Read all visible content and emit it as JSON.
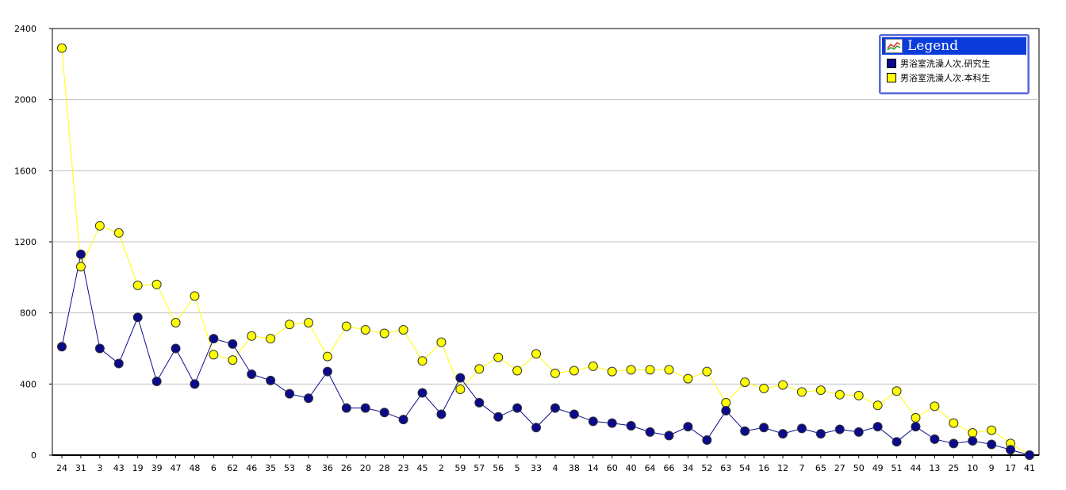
{
  "chart_data": {
    "type": "line",
    "categories": [
      "24",
      "31",
      "3",
      "43",
      "19",
      "39",
      "47",
      "48",
      "6",
      "62",
      "46",
      "35",
      "53",
      "8",
      "36",
      "26",
      "20",
      "28",
      "23",
      "45",
      "2",
      "59",
      "57",
      "56",
      "5",
      "33",
      "4",
      "38",
      "14",
      "60",
      "40",
      "64",
      "66",
      "34",
      "52",
      "63",
      "54",
      "16",
      "12",
      "7",
      "65",
      "27",
      "50",
      "49",
      "51",
      "44",
      "13",
      "25",
      "10",
      "9",
      "17",
      "41"
    ],
    "series": [
      {
        "name": "男浴室洗澡人次.研究生",
        "color": "#0a0a8a",
        "values": [
          610,
          1130,
          600,
          515,
          775,
          415,
          600,
          400,
          655,
          625,
          455,
          420,
          345,
          320,
          470,
          265,
          265,
          240,
          200,
          350,
          230,
          435,
          295,
          215,
          265,
          155,
          265,
          230,
          190,
          180,
          165,
          130,
          110,
          160,
          85,
          250,
          135,
          155,
          120,
          150,
          120,
          145,
          130,
          160,
          75,
          160,
          90,
          65,
          80,
          60,
          30,
          0
        ]
      },
      {
        "name": "男浴室洗澡人次.本科生",
        "color": "#ffff00",
        "values": [
          2290,
          1060,
          1290,
          1250,
          955,
          960,
          745,
          895,
          565,
          535,
          670,
          655,
          735,
          745,
          555,
          725,
          705,
          685,
          705,
          530,
          635,
          370,
          485,
          550,
          475,
          570,
          460,
          475,
          500,
          470,
          480,
          480,
          480,
          430,
          470,
          295,
          410,
          375,
          395,
          355,
          365,
          340,
          335,
          280,
          360,
          210,
          275,
          180,
          125,
          140,
          65,
          0
        ]
      }
    ],
    "y_ticks": [
      "0",
      "400",
      "800",
      "1200",
      "1600",
      "2000",
      "2400"
    ],
    "ylim": [
      0,
      2400
    ],
    "grid": true,
    "legend_position": "top-right"
  },
  "legend": {
    "title": "Legend",
    "items": [
      "男浴室洗澡人次.研究生",
      "男浴室洗澡人次.本科生"
    ]
  }
}
